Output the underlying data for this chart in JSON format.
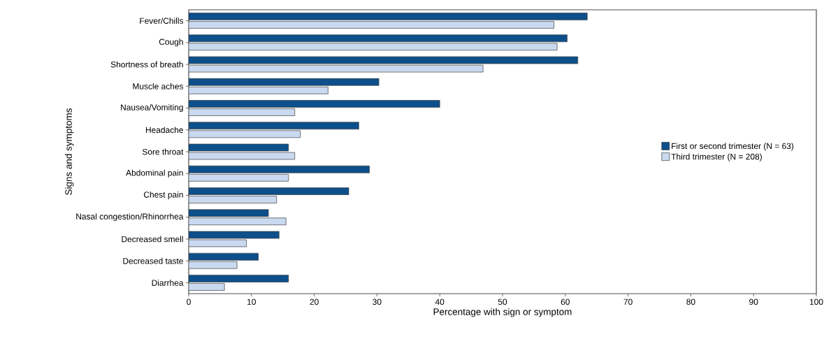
{
  "chart_data": {
    "type": "bar",
    "orientation": "horizontal",
    "xlabel": "Percentage with sign or symptom",
    "ylabel": "Signs and symptoms",
    "categories": [
      "Fever/Chills",
      "Cough",
      "Shortness of breath",
      "Muscle aches",
      "Nausea/Vomiting",
      "Headache",
      "Sore throat",
      "Abdominal pain",
      "Chest pain",
      "Nasal congestion/Rhinorrhea",
      "Decreased smell",
      "Decreased taste",
      "Diarrhea"
    ],
    "series": [
      {
        "name": "First or second trimester (N = 63)",
        "color": "#0d4f8b",
        "values": [
          63.5,
          60.3,
          62.0,
          30.3,
          40.0,
          27.1,
          15.9,
          28.8,
          25.5,
          12.7,
          14.4,
          11.1,
          15.9
        ]
      },
      {
        "name": "Third trimester (N = 208)",
        "color": "#c9d9f0",
        "values": [
          58.2,
          58.7,
          46.9,
          22.2,
          16.9,
          17.8,
          16.9,
          15.9,
          14.0,
          15.5,
          9.2,
          7.7,
          5.7
        ]
      }
    ],
    "xlim": [
      0,
      100
    ],
    "xticks": [
      0,
      10,
      20,
      30,
      40,
      50,
      60,
      70,
      80,
      90,
      100
    ],
    "legend": "right",
    "grid": false
  }
}
